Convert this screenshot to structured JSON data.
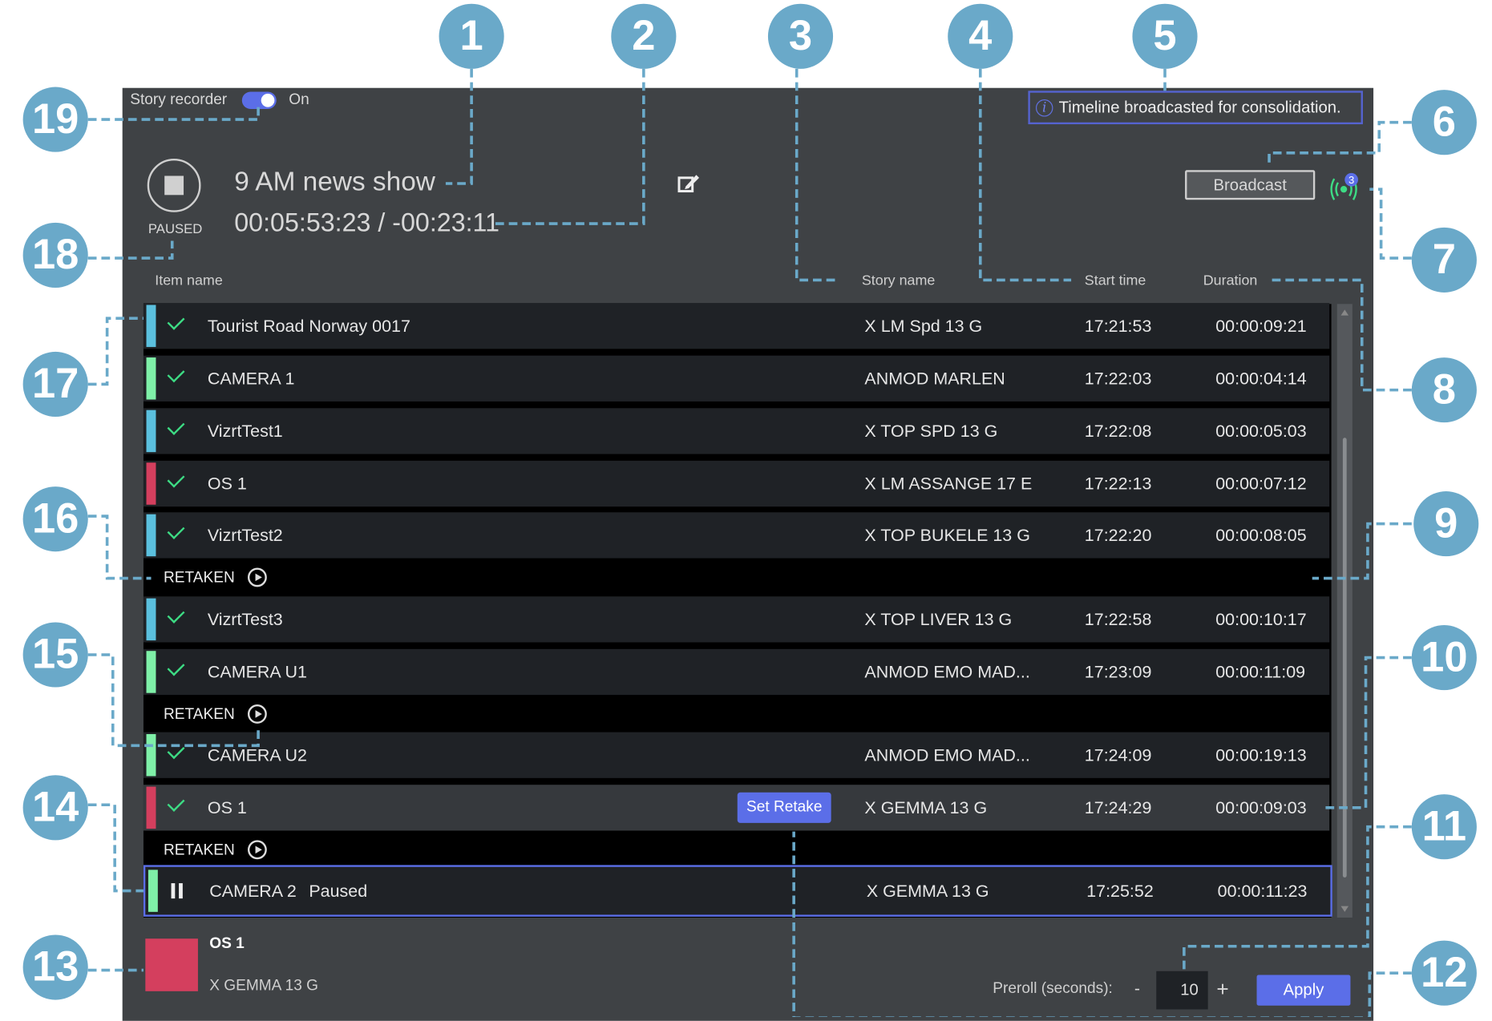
{
  "recorder": {
    "label": "Story recorder",
    "state": "On",
    "enabled": true
  },
  "show": {
    "title": "9 AM news show",
    "time": "00:05:53:23 / -00:23:11",
    "status": "PAUSED"
  },
  "banner": {
    "text": "Timeline broadcasted for consolidation.",
    "icon": "info-icon"
  },
  "broadcast": {
    "label": "Broadcast",
    "badge": "3",
    "icon": "broadcast-signal-icon"
  },
  "columns": {
    "item": "Item name",
    "story": "Story name",
    "start": "Start time",
    "duration": "Duration"
  },
  "rows": [
    {
      "name": "Tourist Road Norway 0017",
      "story": "X LM Spd 13 G",
      "start": "17:21:53",
      "duration": "00:00:09:21",
      "color": "#5bc0de"
    },
    {
      "name": "CAMERA 1",
      "story": "ANMOD MARLEN",
      "start": "17:22:03",
      "duration": "00:00:04:14",
      "color": "#7ff0a8"
    },
    {
      "name": "VizrtTest1",
      "story": "X TOP SPD 13 G",
      "start": "17:22:08",
      "duration": "00:00:05:03",
      "color": "#5bc0de"
    },
    {
      "name": "OS 1",
      "story": "X LM ASSANGE 17 E",
      "start": "17:22:13",
      "duration": "00:00:07:12",
      "color": "#d43f5e"
    },
    {
      "name": "VizrtTest2",
      "story": "X TOP BUKELE 13 G",
      "start": "17:22:20",
      "duration": "00:00:08:05",
      "color": "#5bc0de"
    },
    {
      "name": "VizrtTest3",
      "story": "X TOP LIVER 13 G",
      "start": "17:22:58",
      "duration": "00:00:10:17",
      "color": "#5bc0de"
    },
    {
      "name": "CAMERA U1",
      "story": "ANMOD EMO MAD...",
      "start": "17:23:09",
      "duration": "00:00:11:09",
      "color": "#7ff0a8"
    },
    {
      "name": "CAMERA U2",
      "story": "ANMOD EMO MAD...",
      "start": "17:24:09",
      "duration": "00:00:19:13",
      "color": "#7ff0a8"
    },
    {
      "name": "OS 1",
      "story": "X GEMMA 13 G",
      "start": "17:24:29",
      "duration": "00:00:09:03",
      "color": "#d43f5e"
    },
    {
      "name": "CAMERA 2",
      "status": "Paused",
      "story": "X GEMMA 13 G",
      "start": "17:25:52",
      "duration": "00:00:11:23",
      "color": "#7ff0a8"
    }
  ],
  "retaken_label": "RETAKEN",
  "set_retake_label": "Set Retake",
  "next": {
    "name": "OS 1",
    "story": "X GEMMA 13 G",
    "color": "#d43f5e"
  },
  "preroll": {
    "label": "Preroll (seconds):",
    "value": "10",
    "minus": "-",
    "plus": "+",
    "apply": "Apply"
  },
  "callouts": [
    "1",
    "2",
    "3",
    "4",
    "5",
    "6",
    "7",
    "8",
    "9",
    "10",
    "11",
    "12",
    "13",
    "14",
    "15",
    "16",
    "17",
    "18",
    "19"
  ]
}
